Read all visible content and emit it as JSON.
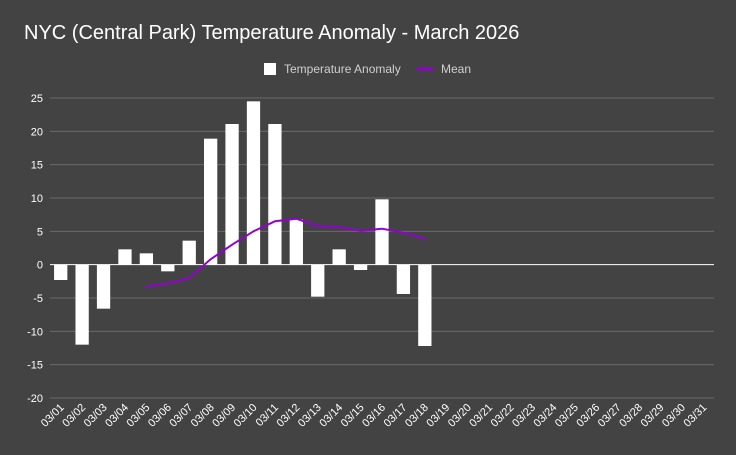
{
  "chart_data": {
    "type": "bar",
    "title": "NYC (Central Park) Temperature Anomaly - March 2026",
    "xlabel": "",
    "ylabel": "",
    "ylim": [
      -20,
      25
    ],
    "yticks": [
      25,
      20,
      15,
      10,
      5,
      0,
      -5,
      -10,
      -15,
      -20
    ],
    "grid": true,
    "legend_position": "top-center",
    "categories": [
      "03/01",
      "03/02",
      "03/03",
      "03/04",
      "03/05",
      "03/06",
      "03/07",
      "03/08",
      "03/09",
      "03/10",
      "03/11",
      "03/12",
      "03/13",
      "03/14",
      "03/15",
      "03/16",
      "03/17",
      "03/18",
      "03/19",
      "03/20",
      "03/21",
      "03/22",
      "03/23",
      "03/24",
      "03/25",
      "03/26",
      "03/27",
      "03/28",
      "03/29",
      "03/30",
      "03/31"
    ],
    "series": [
      {
        "name": "Temperature Anomaly",
        "type": "bar",
        "color": "#ffffff",
        "values": [
          -2.3,
          -12,
          -6.6,
          2.3,
          1.7,
          -1,
          3.6,
          18.9,
          21.1,
          24.5,
          21.1,
          6.8,
          -4.8,
          2.3,
          -0.8,
          9.8,
          -4.4,
          -12.2,
          null,
          null,
          null,
          null,
          null,
          null,
          null,
          null,
          null,
          null,
          null,
          null,
          null
        ]
      },
      {
        "name": "Mean",
        "type": "line",
        "color": "#9400d3",
        "values": [
          null,
          null,
          null,
          null,
          -3.3,
          -2.8,
          -2,
          0.8,
          3,
          5,
          6.5,
          6.9,
          5.8,
          5.6,
          5.1,
          5.4,
          4.8,
          3.9,
          null,
          null,
          null,
          null,
          null,
          null,
          null,
          null,
          null,
          null,
          null,
          null,
          null
        ]
      }
    ]
  }
}
